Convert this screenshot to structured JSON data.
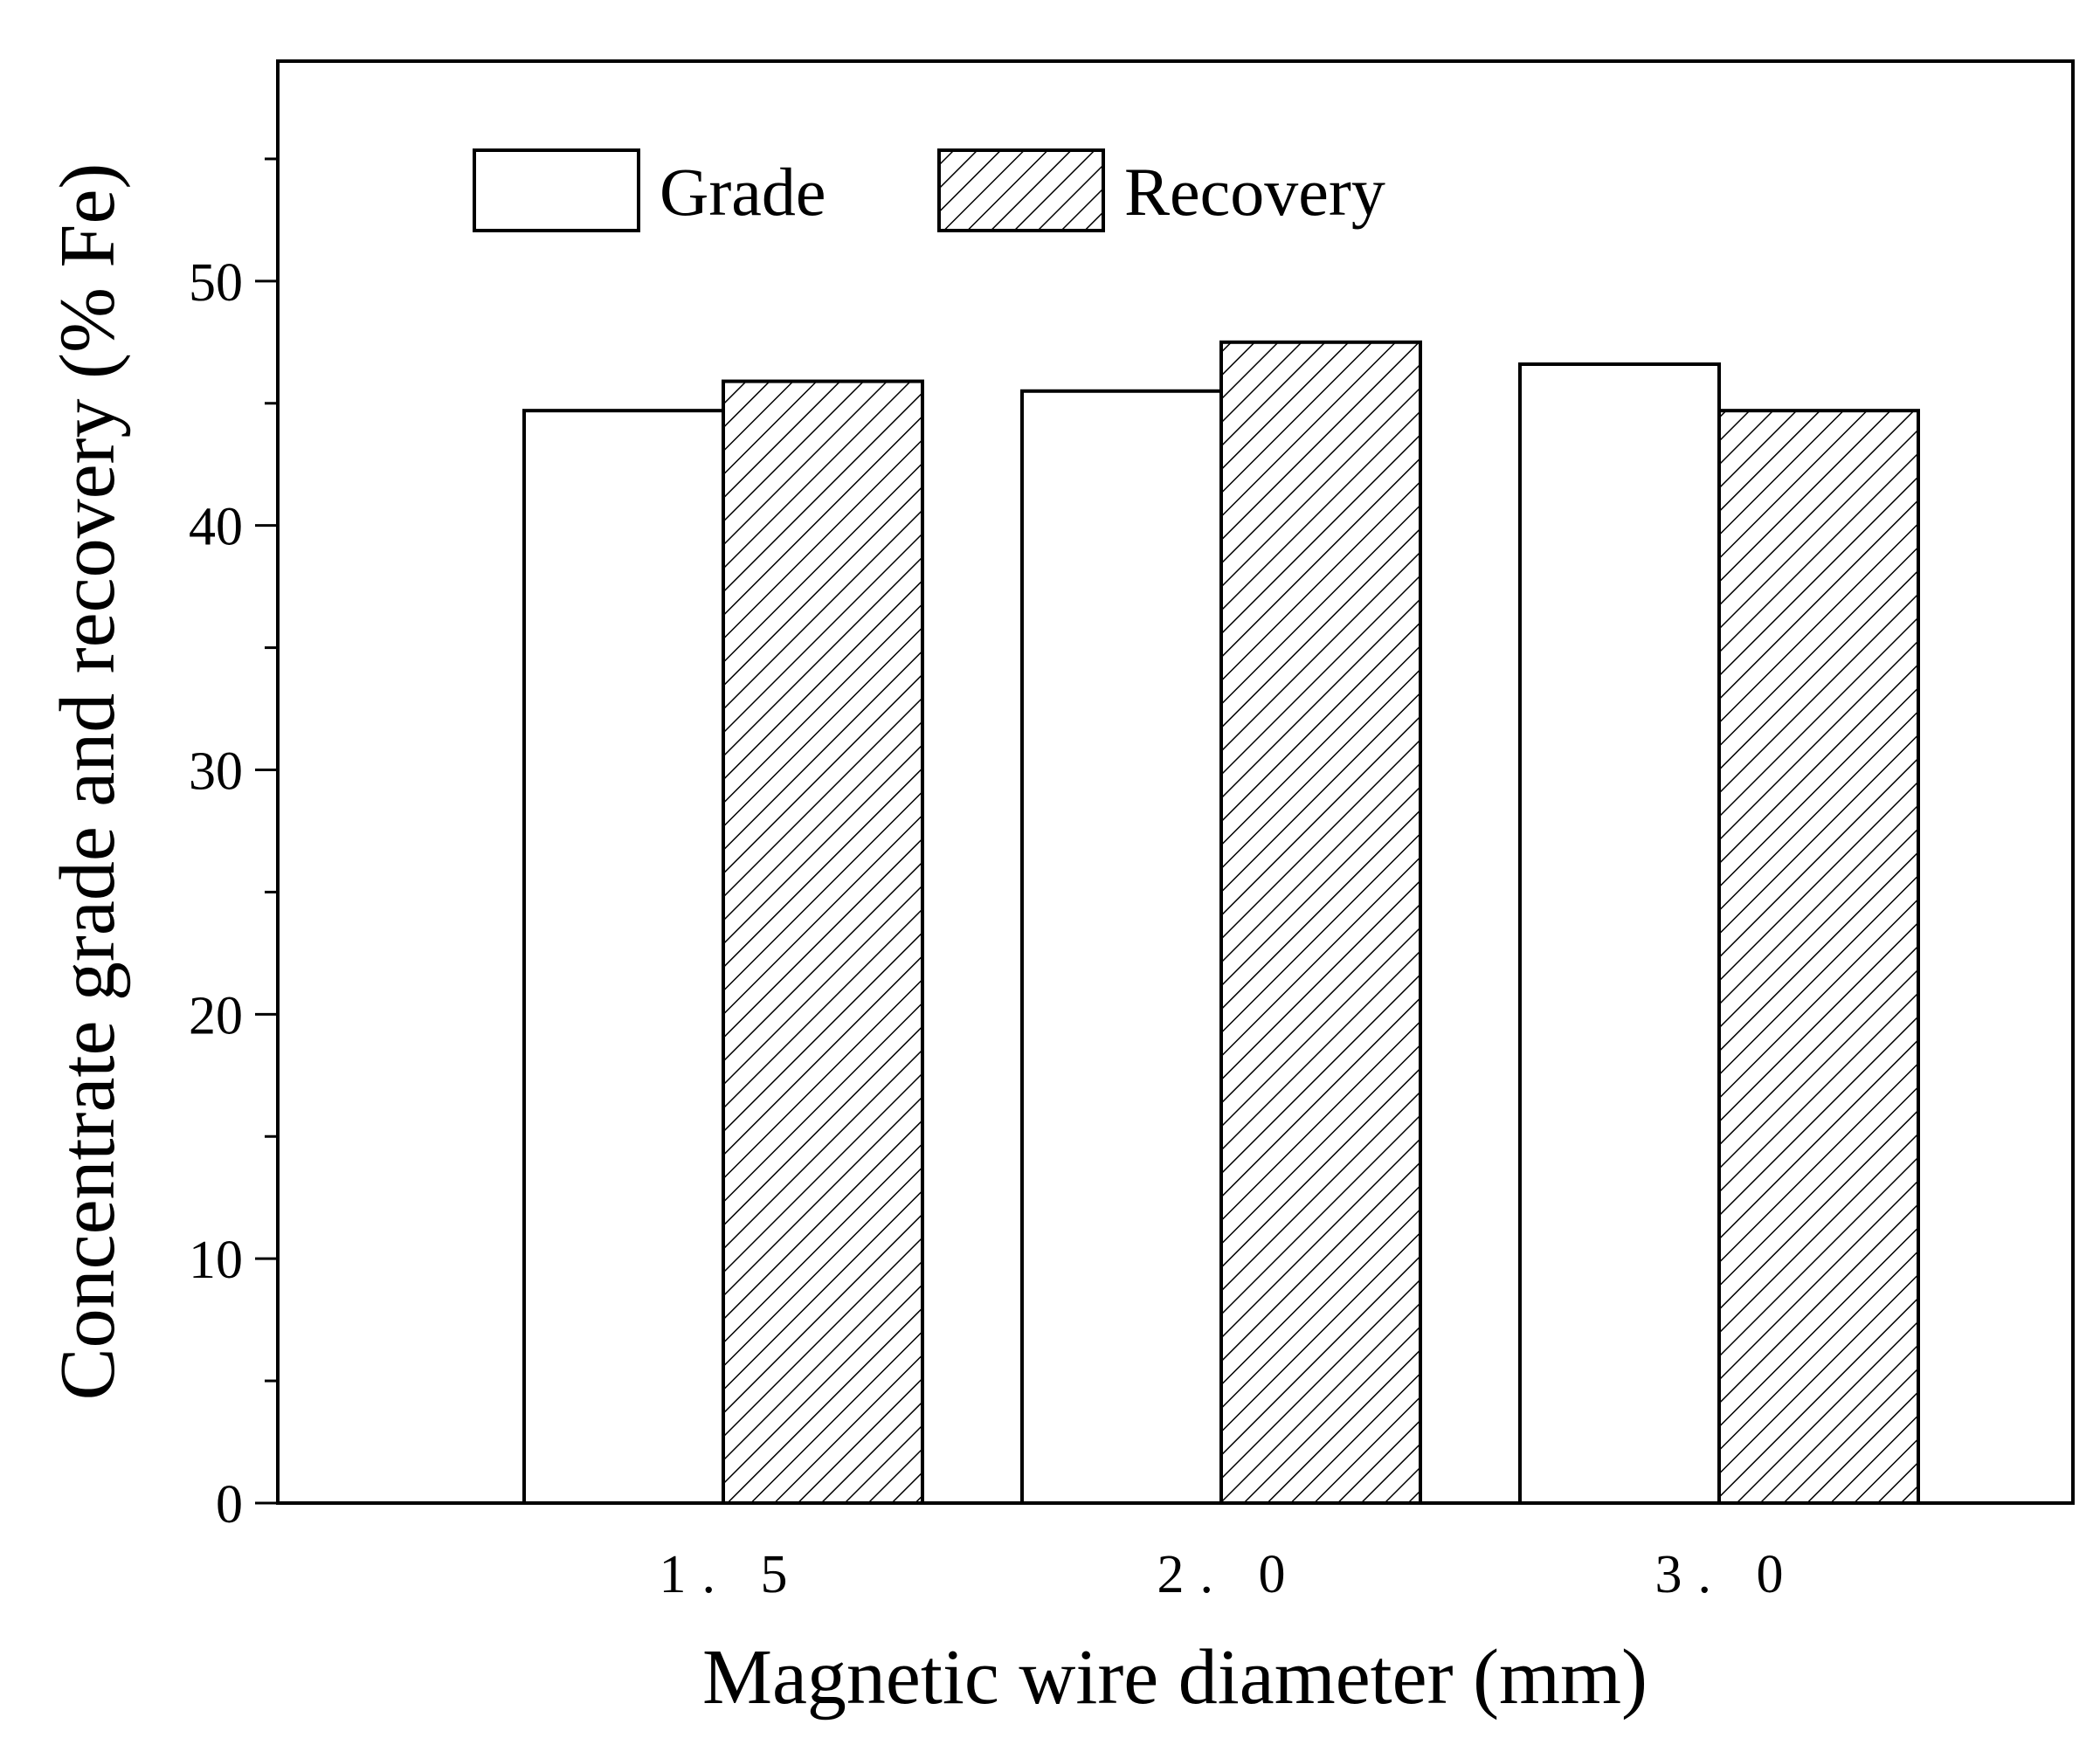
{
  "chart_data": {
    "type": "bar",
    "title": "",
    "xlabel": "Magnetic wire diameter (mm)",
    "ylabel": "Concentrate grade and recovery (% Fe)",
    "categories": [
      "1.5",
      "2.0",
      "3.0"
    ],
    "category_labels": [
      "1. 5",
      "2. 0",
      "3. 0"
    ],
    "series": [
      {
        "name": "Grade",
        "values": [
          44.7,
          45.5,
          46.6
        ],
        "fill": "#ffffff",
        "pattern": "none"
      },
      {
        "name": "Recovery",
        "values": [
          45.9,
          47.5,
          44.7
        ],
        "fill": "#ffffff",
        "pattern": "diagonal-hatch"
      }
    ],
    "ylim": [
      0,
      59
    ],
    "yticks": [
      0,
      10,
      20,
      30,
      40,
      50
    ],
    "yminor_step": 5,
    "grid": false,
    "legend_position": "top-left",
    "colors": {
      "stroke": "#000000",
      "background": "#ffffff"
    }
  }
}
